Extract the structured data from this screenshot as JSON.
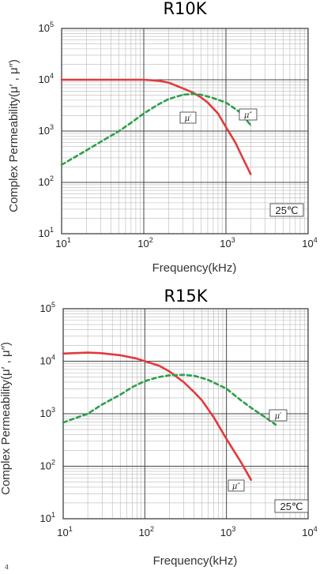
{
  "chart_data": [
    {
      "type": "line",
      "title": "R10K",
      "xlabel": "Frequency(kHz)",
      "ylabel": "Complex Permeability(μ′ , μ″)",
      "xscale": "log",
      "yscale": "log",
      "xlim": [
        10,
        10000
      ],
      "ylim": [
        10,
        100000
      ],
      "grid": true,
      "x_ticks": [
        "1",
        "2",
        "3",
        "4"
      ],
      "y_ticks": [
        "1",
        "2",
        "3",
        "4",
        "5"
      ],
      "tick_base": "10",
      "annotation": "25℃",
      "series": [
        {
          "name": "μ′",
          "color": "#e03a3e",
          "dash": "solid",
          "points": [
            [
              10,
              10000
            ],
            [
              50,
              10000
            ],
            [
              100,
              10000
            ],
            [
              150,
              9600
            ],
            [
              200,
              8800
            ],
            [
              300,
              6800
            ],
            [
              400,
              5600
            ],
            [
              500,
              4500
            ],
            [
              600,
              3600
            ],
            [
              800,
              2200
            ],
            [
              1000,
              1200
            ],
            [
              1300,
              600
            ],
            [
              1600,
              300
            ],
            [
              2000,
              145
            ]
          ]
        },
        {
          "name": "μ″",
          "color": "#2e9e4a",
          "dash": "dashed",
          "points": [
            [
              10,
              220
            ],
            [
              20,
              420
            ],
            [
              30,
              620
            ],
            [
              50,
              1000
            ],
            [
              70,
              1450
            ],
            [
              100,
              2200
            ],
            [
              150,
              3300
            ],
            [
              200,
              4200
            ],
            [
              300,
              5100
            ],
            [
              400,
              5300
            ],
            [
              500,
              5100
            ],
            [
              700,
              4400
            ],
            [
              1000,
              3600
            ],
            [
              1500,
              2300
            ],
            [
              2000,
              1300
            ]
          ]
        }
      ]
    },
    {
      "type": "line",
      "title": "R15K",
      "xlabel": "Frequency(kHz)",
      "ylabel": "Complex Permeability(μ′ , μ″)",
      "xscale": "log",
      "yscale": "log",
      "xlim": [
        10,
        10000
      ],
      "ylim": [
        10,
        100000
      ],
      "grid": true,
      "x_ticks": [
        "1",
        "2",
        "3",
        "4"
      ],
      "y_ticks": [
        "1",
        "2",
        "3",
        "4",
        "5"
      ],
      "tick_base": "10",
      "annotation": "25℃",
      "series": [
        {
          "name": "μ′",
          "color": "#e03a3e",
          "dash": "solid",
          "points": [
            [
              10,
              14000
            ],
            [
              20,
              14600
            ],
            [
              30,
              14200
            ],
            [
              50,
              13000
            ],
            [
              80,
              11200
            ],
            [
              100,
              10000
            ],
            [
              150,
              8200
            ],
            [
              200,
              6400
            ],
            [
              300,
              4000
            ],
            [
              400,
              2600
            ],
            [
              500,
              1800
            ],
            [
              700,
              850
            ],
            [
              1000,
              330
            ],
            [
              1500,
              120
            ],
            [
              2000,
              55
            ]
          ]
        },
        {
          "name": "μ″",
          "color": "#2e9e4a",
          "dash": "dashed",
          "points": [
            [
              10,
              680
            ],
            [
              20,
              1000
            ],
            [
              30,
              1500
            ],
            [
              50,
              2300
            ],
            [
              70,
              3200
            ],
            [
              100,
              4200
            ],
            [
              150,
              5000
            ],
            [
              200,
              5400
            ],
            [
              300,
              5500
            ],
            [
              400,
              5300
            ],
            [
              600,
              4400
            ],
            [
              1000,
              3000
            ],
            [
              1500,
              1800
            ],
            [
              2000,
              1300
            ],
            [
              3000,
              850
            ],
            [
              4000,
              620
            ]
          ]
        }
      ]
    }
  ],
  "footnote": "4"
}
